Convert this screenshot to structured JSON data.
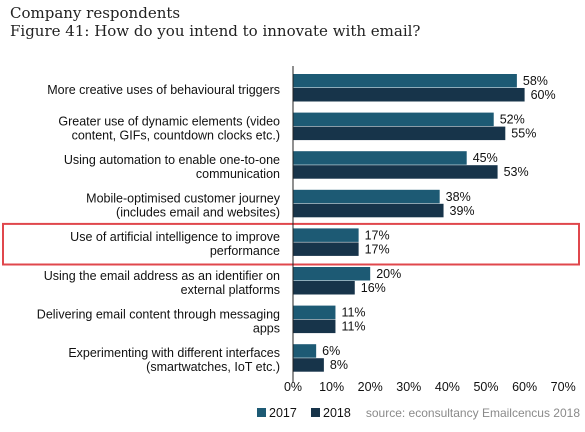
{
  "header": {
    "line1": "Company respondents",
    "line2": "Figure 41: How do you intend to innovate with email?"
  },
  "source": "source: econsultancy Emailcencus 2018",
  "colors": {
    "2017": "#1d5a74",
    "2018": "#17344a",
    "highlight": "#e0474c"
  },
  "highlighted_category_index": 4,
  "chart_data": {
    "type": "bar",
    "orientation": "horizontal",
    "categories": [
      [
        "More creative uses of behavioural triggers"
      ],
      [
        "Greater use of dynamic elements (video",
        "content, GIFs, countdown clocks etc.)"
      ],
      [
        "Using automation to enable one-to-one",
        "communication"
      ],
      [
        "Mobile-optimised customer journey",
        "(includes email and websites)"
      ],
      [
        "Use of artificial intelligence to improve",
        "performance"
      ],
      [
        "Using the email address as an identifier on",
        "external platforms"
      ],
      [
        "Delivering email content through messaging",
        "apps"
      ],
      [
        "Experimenting with different interfaces",
        "(smartwatches, IoT etc.)"
      ]
    ],
    "series": [
      {
        "name": "2017",
        "values": [
          58,
          52,
          45,
          38,
          17,
          20,
          11,
          6
        ]
      },
      {
        "name": "2018",
        "values": [
          60,
          55,
          53,
          39,
          17,
          16,
          11,
          8
        ]
      }
    ],
    "value_suffix": "%",
    "xlim": [
      0,
      70
    ],
    "xticks": [
      "0%",
      "10%",
      "20%",
      "30%",
      "40%",
      "50%",
      "60%",
      "70%"
    ],
    "legend_position": "bottom-left",
    "grid": false
  }
}
